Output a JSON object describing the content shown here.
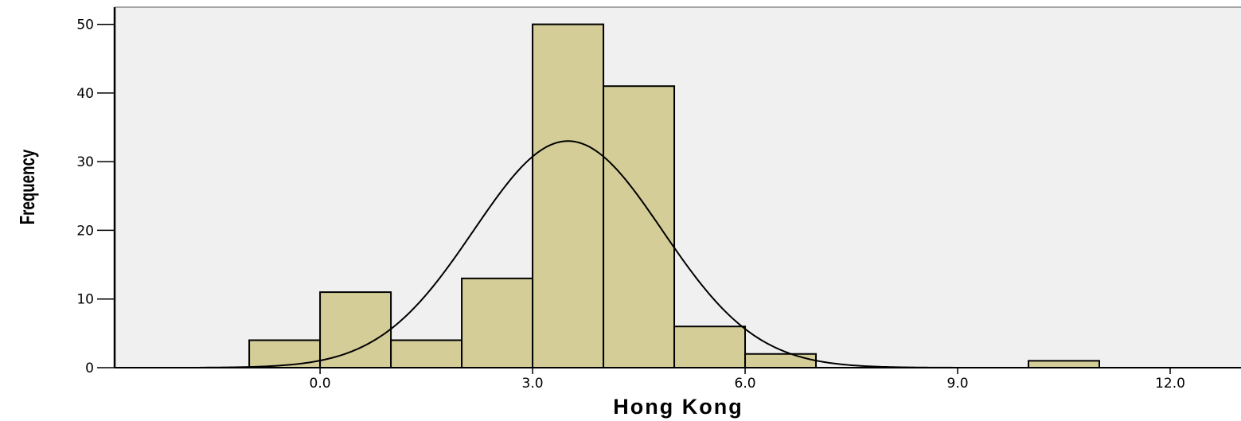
{
  "chart_data": {
    "type": "bar",
    "subtype": "histogram",
    "xlabel": "Hong Kong",
    "ylabel": "Frequency",
    "bin_width": 1.0,
    "bins": [
      {
        "start": -1.0,
        "end": 0.0,
        "count": 4
      },
      {
        "start": 0.0,
        "end": 1.0,
        "count": 11
      },
      {
        "start": 1.0,
        "end": 2.0,
        "count": 4
      },
      {
        "start": 2.0,
        "end": 3.0,
        "count": 13
      },
      {
        "start": 3.0,
        "end": 4.0,
        "count": 50
      },
      {
        "start": 4.0,
        "end": 5.0,
        "count": 41
      },
      {
        "start": 5.0,
        "end": 6.0,
        "count": 6
      },
      {
        "start": 6.0,
        "end": 7.0,
        "count": 2
      },
      {
        "start": 10.0,
        "end": 11.0,
        "count": 1
      }
    ],
    "normal_curve": {
      "mean": 3.5,
      "std_dev": 1.33,
      "peak_frequency": 33.0
    },
    "xlim": [
      -2.9,
      13.0
    ],
    "ylim": [
      0,
      52.5
    ],
    "x_ticks": [
      0.0,
      3.0,
      6.0,
      9.0,
      12.0
    ],
    "x_tick_labels": [
      "0.0",
      "3.0",
      "6.0",
      "9.0",
      "12.0"
    ],
    "y_ticks": [
      0,
      10,
      20,
      30,
      40,
      50
    ],
    "y_tick_labels": [
      "0",
      "10",
      "20",
      "30",
      "40",
      "50"
    ],
    "grid": false,
    "colors": {
      "bar_fill": "#d4cd98",
      "bar_stroke": "#000000",
      "plot_background": "#f0f0f0",
      "curve": "#000000"
    }
  }
}
